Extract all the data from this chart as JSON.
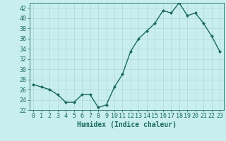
{
  "x": [
    0,
    1,
    2,
    3,
    4,
    5,
    6,
    7,
    8,
    9,
    10,
    11,
    12,
    13,
    14,
    15,
    16,
    17,
    18,
    19,
    20,
    21,
    22,
    23
  ],
  "y": [
    27,
    26.5,
    26,
    25,
    23.5,
    23.5,
    25,
    25,
    22.5,
    23,
    26.5,
    29,
    33.5,
    36,
    37.5,
    39,
    41.5,
    41,
    43,
    40.5,
    41,
    39,
    36.5,
    33.5
  ],
  "line_color": "#1a6b5a",
  "bg_color": "#c8eeee",
  "grid_color": "#b0d8d8",
  "xlabel": "Humidex (Indice chaleur)",
  "xlim": [
    -0.5,
    23.5
  ],
  "ylim": [
    22,
    43
  ],
  "yticks": [
    22,
    24,
    26,
    28,
    30,
    32,
    34,
    36,
    38,
    40,
    42
  ],
  "xticks": [
    0,
    1,
    2,
    3,
    4,
    5,
    6,
    7,
    8,
    9,
    10,
    11,
    12,
    13,
    14,
    15,
    16,
    17,
    18,
    19,
    20,
    21,
    22,
    23
  ],
  "markersize": 2.0,
  "linewidth": 1.0,
  "xlabel_fontsize": 7,
  "tick_fontsize": 6
}
